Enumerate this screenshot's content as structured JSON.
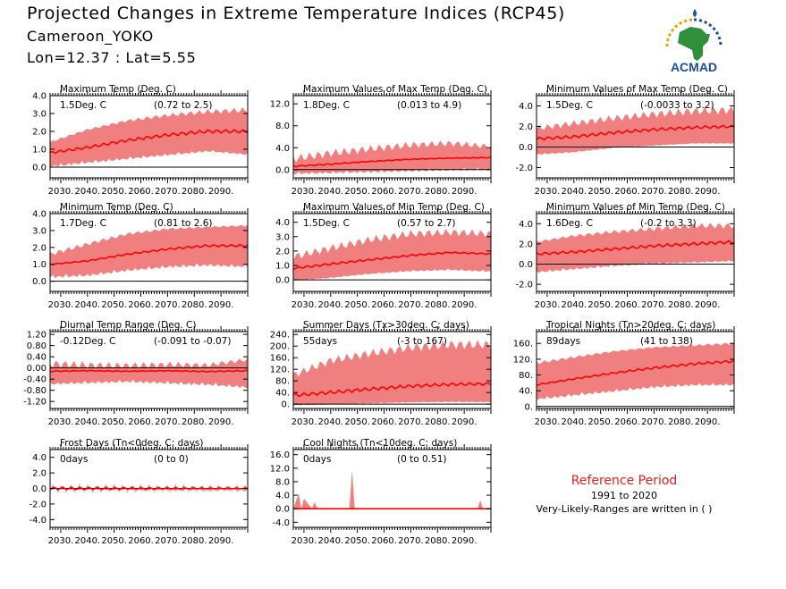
{
  "header": {
    "title": "Projected Changes in Extreme Temperature Indices (RCP45)",
    "location": "Cameroon_YOKO",
    "coords": "Lon=12.37 : Lat=5.55"
  },
  "logo": {
    "text": "ACMAD",
    "colors": {
      "africa": "#2f8f3a",
      "sun": "#e8a000",
      "text": "#1a4fa0"
    }
  },
  "reference": {
    "title": "Reference Period",
    "years": "1991 to 2020",
    "note": "Very-Likely-Ranges are written in ( )"
  },
  "style": {
    "band_color": "#f08080",
    "line_color": "#ff0000",
    "zero_line": "#000000"
  },
  "chart_data": [
    {
      "type": "area",
      "title": "Maximum Temp (Deg. C)",
      "summary": "1.5Deg. C",
      "range": "(0.72 to 2.5)",
      "x_ticks": [
        "2030.",
        "2040.",
        "2050.",
        "2060.",
        "2070.",
        "2080.",
        "2090."
      ],
      "yticks": [
        0.0,
        1.0,
        2.0,
        3.0,
        4.0
      ],
      "ytick_labels": [
        "0.0",
        "1.0",
        "2.0",
        "3.0",
        "4.0"
      ],
      "ylim": [
        -0.6,
        4.0
      ],
      "xlim": [
        2026,
        2100
      ],
      "series": [
        {
          "role": "median",
          "x": [
            2026,
            2040,
            2055,
            2070,
            2085,
            2100
          ],
          "y": [
            0.8,
            1.1,
            1.5,
            1.8,
            2.0,
            2.0
          ]
        },
        {
          "role": "upper",
          "x": [
            2026,
            2040,
            2055,
            2070,
            2085,
            2100
          ],
          "y": [
            1.4,
            2.1,
            2.6,
            2.9,
            3.1,
            3.2
          ]
        },
        {
          "role": "lower",
          "x": [
            2026,
            2040,
            2055,
            2070,
            2085,
            2100
          ],
          "y": [
            0.2,
            0.4,
            0.6,
            0.8,
            1.0,
            0.8
          ]
        }
      ]
    },
    {
      "type": "area",
      "title": "Maximum Values of Max Temp (Deg. C)",
      "summary": "1.8Deg. C",
      "range": "(0.013 to 4.9)",
      "x_ticks": [
        "2030.",
        "2040.",
        "2050.",
        "2060.",
        "2070.",
        "2080.",
        "2090."
      ],
      "yticks": [
        0.0,
        4.0,
        8.0,
        12.0
      ],
      "ytick_labels": [
        "0.0",
        "4.0",
        "8.0",
        "12.0"
      ],
      "ylim": [
        -1.5,
        13.5
      ],
      "xlim": [
        2026,
        2100
      ],
      "series": [
        {
          "role": "median",
          "x": [
            2026,
            2040,
            2055,
            2070,
            2085,
            2100
          ],
          "y": [
            0.6,
            1.0,
            1.5,
            1.9,
            2.1,
            2.2
          ]
        },
        {
          "role": "upper",
          "x": [
            2026,
            2040,
            2055,
            2070,
            2085,
            2100
          ],
          "y": [
            2.0,
            3.0,
            3.8,
            4.5,
            4.8,
            4.2
          ]
        },
        {
          "role": "lower",
          "x": [
            2026,
            2040,
            2055,
            2070,
            2085,
            2100
          ],
          "y": [
            -0.4,
            -0.2,
            0.0,
            0.2,
            0.4,
            0.5
          ]
        }
      ]
    },
    {
      "type": "area",
      "title": "Minimum Values of Max Temp (Deg. C)",
      "summary": "1.5Deg. C",
      "range": "(-0.0033 to 3.2)",
      "x_ticks": [
        "2030.",
        "2040.",
        "2050.",
        "2060.",
        "2070.",
        "2080.",
        "2090."
      ],
      "yticks": [
        -2.0,
        0.0,
        2.0,
        4.0
      ],
      "ytick_labels": [
        "-2.0",
        "0.0",
        "2.0",
        "4.0"
      ],
      "ylim": [
        -3.0,
        5.0
      ],
      "xlim": [
        2026,
        2100
      ],
      "series": [
        {
          "role": "median",
          "x": [
            2026,
            2040,
            2055,
            2070,
            2085,
            2100
          ],
          "y": [
            0.8,
            1.0,
            1.4,
            1.7,
            1.9,
            2.0
          ]
        },
        {
          "role": "upper",
          "x": [
            2026,
            2040,
            2055,
            2070,
            2085,
            2100
          ],
          "y": [
            1.8,
            2.3,
            2.8,
            3.2,
            3.5,
            3.6
          ]
        },
        {
          "role": "lower",
          "x": [
            2026,
            2040,
            2055,
            2070,
            2085,
            2100
          ],
          "y": [
            -0.6,
            -0.4,
            0.0,
            0.2,
            0.4,
            0.4
          ]
        }
      ]
    },
    {
      "type": "area",
      "title": "Minimum Temp (Deg. C)",
      "summary": "1.7Deg. C",
      "range": "(0.81 to 2.6)",
      "x_ticks": [
        "2030.",
        "2040.",
        "2050.",
        "2060.",
        "2070.",
        "2080.",
        "2090."
      ],
      "yticks": [
        0.0,
        1.0,
        2.0,
        3.0,
        4.0
      ],
      "ytick_labels": [
        "0.0",
        "1.0",
        "2.0",
        "3.0",
        "4.0"
      ],
      "ylim": [
        -0.6,
        4.0
      ],
      "xlim": [
        2026,
        2100
      ],
      "series": [
        {
          "role": "median",
          "x": [
            2026,
            2040,
            2055,
            2070,
            2085,
            2100
          ],
          "y": [
            1.0,
            1.2,
            1.6,
            1.9,
            2.1,
            2.1
          ]
        },
        {
          "role": "upper",
          "x": [
            2026,
            2040,
            2055,
            2070,
            2085,
            2100
          ],
          "y": [
            1.6,
            2.2,
            2.8,
            3.1,
            3.2,
            3.3
          ]
        },
        {
          "role": "lower",
          "x": [
            2026,
            2040,
            2055,
            2070,
            2085,
            2100
          ],
          "y": [
            0.4,
            0.5,
            0.8,
            1.0,
            1.1,
            1.0
          ]
        }
      ]
    },
    {
      "type": "area",
      "title": "Maximum Values of Min Temp (Deg. C)",
      "summary": "1.5Deg. C",
      "range": "(0.57 to 2.7)",
      "x_ticks": [
        "2030.",
        "2040.",
        "2050.",
        "2060.",
        "2070.",
        "2080.",
        "2090."
      ],
      "yticks": [
        0.0,
        1.0,
        2.0,
        3.0,
        4.0
      ],
      "ytick_labels": [
        "0.0",
        "1.0",
        "2.0",
        "3.0",
        "4.0"
      ],
      "ylim": [
        -0.8,
        4.6
      ],
      "xlim": [
        2026,
        2100
      ],
      "series": [
        {
          "role": "median",
          "x": [
            2026,
            2040,
            2055,
            2070,
            2085,
            2100
          ],
          "y": [
            0.8,
            1.1,
            1.4,
            1.7,
            1.9,
            1.8
          ]
        },
        {
          "role": "upper",
          "x": [
            2026,
            2040,
            2055,
            2070,
            2085,
            2100
          ],
          "y": [
            1.6,
            2.2,
            2.8,
            3.2,
            3.3,
            3.2
          ]
        },
        {
          "role": "lower",
          "x": [
            2026,
            2040,
            2055,
            2070,
            2085,
            2100
          ],
          "y": [
            0.0,
            0.2,
            0.5,
            0.7,
            0.8,
            0.7
          ]
        }
      ]
    },
    {
      "type": "area",
      "title": "Minimum Values of Min Temp (Deg. C)",
      "summary": "1.6Deg. C",
      "range": "(-0.2 to 3.3)",
      "x_ticks": [
        "2030.",
        "2040.",
        "2050.",
        "2060.",
        "2070.",
        "2080.",
        "2090."
      ],
      "yticks": [
        -2.0,
        0.0,
        2.0,
        4.0
      ],
      "ytick_labels": [
        "-2.0",
        "0.0",
        "2.0",
        "4.0"
      ],
      "ylim": [
        -2.7,
        5.0
      ],
      "xlim": [
        2026,
        2100
      ],
      "series": [
        {
          "role": "median",
          "x": [
            2026,
            2040,
            2055,
            2070,
            2085,
            2100
          ],
          "y": [
            1.0,
            1.2,
            1.5,
            1.8,
            2.0,
            2.2
          ]
        },
        {
          "role": "upper",
          "x": [
            2026,
            2040,
            2055,
            2070,
            2085,
            2100
          ],
          "y": [
            2.2,
            2.8,
            3.2,
            3.5,
            3.8,
            3.8
          ]
        },
        {
          "role": "lower",
          "x": [
            2026,
            2040,
            2055,
            2070,
            2085,
            2100
          ],
          "y": [
            -0.6,
            -0.3,
            0.0,
            0.2,
            0.3,
            0.4
          ]
        }
      ]
    },
    {
      "type": "area",
      "title": "Diurnal Temp Range (Deg. C)",
      "summary": "-0.12Deg. C",
      "range": "(-0.091 to -0.07)",
      "x_ticks": [
        "2030.",
        "2040.",
        "2050.",
        "2060.",
        "2070.",
        "2080.",
        "2090."
      ],
      "yticks": [
        -1.2,
        -0.8,
        -0.4,
        0.0,
        0.4,
        0.8,
        1.2
      ],
      "ytick_labels": [
        "-1.20",
        "-0.80",
        "-0.40",
        "0.00",
        "0.40",
        "0.80",
        "1.20"
      ],
      "ylim": [
        -1.45,
        1.3
      ],
      "xlim": [
        2026,
        2100
      ],
      "series": [
        {
          "role": "median",
          "x": [
            2026,
            2040,
            2055,
            2070,
            2085,
            2100
          ],
          "y": [
            -0.12,
            -0.1,
            -0.12,
            -0.1,
            -0.13,
            -0.1
          ]
        },
        {
          "role": "upper",
          "x": [
            2026,
            2040,
            2055,
            2070,
            2085,
            2100
          ],
          "y": [
            0.15,
            0.1,
            0.08,
            0.12,
            0.1,
            0.3
          ]
        },
        {
          "role": "lower",
          "x": [
            2026,
            2040,
            2055,
            2070,
            2085,
            2100
          ],
          "y": [
            -0.5,
            -0.45,
            -0.4,
            -0.45,
            -0.5,
            -0.6
          ]
        }
      ]
    },
    {
      "type": "area",
      "title": "Summer Days (Tx>30deg. C; days)",
      "summary": "55days",
      "range": "(-3 to 167)",
      "x_ticks": [
        "2030.",
        "2040.",
        "2050.",
        "2060.",
        "2070.",
        "2080.",
        "2090."
      ],
      "yticks": [
        0,
        40,
        80,
        120,
        160,
        200,
        240
      ],
      "ytick_labels": [
        "0.",
        "40.",
        "80.",
        "120.",
        "160.",
        "200.",
        "240."
      ],
      "ylim": [
        -15,
        250
      ],
      "xlim": [
        2026,
        2100
      ],
      "series": [
        {
          "role": "median",
          "x": [
            2026,
            2040,
            2055,
            2070,
            2085,
            2100
          ],
          "y": [
            30,
            40,
            52,
            62,
            68,
            70
          ]
        },
        {
          "role": "upper",
          "x": [
            2026,
            2040,
            2055,
            2070,
            2085,
            2100
          ],
          "y": [
            100,
            150,
            175,
            195,
            205,
            205
          ]
        },
        {
          "role": "lower",
          "x": [
            2026,
            2040,
            2055,
            2070,
            2085,
            2100
          ],
          "y": [
            0,
            2,
            5,
            8,
            10,
            10
          ]
        }
      ]
    },
    {
      "type": "area",
      "title": "Tropical Nights (Tn>20deg. C; days)",
      "summary": "89days",
      "range": "(41 to 138)",
      "x_ticks": [
        "2030.",
        "2040.",
        "2050.",
        "2060.",
        "2070.",
        "2080.",
        "2090."
      ],
      "yticks": [
        0,
        40,
        80,
        120,
        160
      ],
      "ytick_labels": [
        "0.",
        "40.",
        "80.",
        "120.",
        "160."
      ],
      "ylim": [
        -5,
        190
      ],
      "xlim": [
        2026,
        2100
      ],
      "series": [
        {
          "role": "median",
          "x": [
            2026,
            2040,
            2055,
            2070,
            2085,
            2100
          ],
          "y": [
            55,
            70,
            85,
            98,
            108,
            115
          ]
        },
        {
          "role": "upper",
          "x": [
            2026,
            2040,
            2055,
            2070,
            2085,
            2100
          ],
          "y": [
            110,
            125,
            140,
            150,
            155,
            160
          ]
        },
        {
          "role": "lower",
          "x": [
            2026,
            2040,
            2055,
            2070,
            2085,
            2100
          ],
          "y": [
            25,
            35,
            45,
            55,
            60,
            60
          ]
        }
      ]
    },
    {
      "type": "area",
      "title": "Frost Days (Tn<0deg. C; days)",
      "summary": "0days",
      "range": "(0 to 0)",
      "x_ticks": [
        "2030.",
        "2040.",
        "2050.",
        "2060.",
        "2070.",
        "2080.",
        "2090."
      ],
      "yticks": [
        -4.0,
        -2.0,
        0.0,
        2.0,
        4.0
      ],
      "ytick_labels": [
        "-4.0",
        "-2.0",
        "0.0",
        "2.0",
        "4.0"
      ],
      "ylim": [
        -5.0,
        5.0
      ],
      "xlim": [
        2026,
        2100
      ],
      "series": [
        {
          "role": "median",
          "x": [
            2026,
            2100
          ],
          "y": [
            0,
            0
          ]
        },
        {
          "role": "upper",
          "x": [
            2026,
            2100
          ],
          "y": [
            0,
            0
          ]
        },
        {
          "role": "lower",
          "x": [
            2026,
            2100
          ],
          "y": [
            0,
            0
          ]
        }
      ]
    },
    {
      "type": "area",
      "title": "Cool Nights (Tn<10deg. C; days)",
      "summary": "0days",
      "range": "(0 to 0.51)",
      "x_ticks": [
        "2030.",
        "2040.",
        "2050.",
        "2060.",
        "2070.",
        "2080.",
        "2090."
      ],
      "yticks": [
        -4.0,
        0.0,
        4.0,
        8.0,
        12.0,
        16.0
      ],
      "ytick_labels": [
        "-4.0",
        "0.0",
        "4.0",
        "8.0",
        "12.0",
        "16.0"
      ],
      "ylim": [
        -5.5,
        17.5
      ],
      "xlim": [
        2026,
        2100
      ],
      "series": [
        {
          "role": "median",
          "x": [
            2026,
            2100
          ],
          "y": [
            0,
            0
          ]
        },
        {
          "role": "upper",
          "x": [
            2026,
            2028,
            2029,
            2030,
            2033,
            2034,
            2035,
            2047,
            2048,
            2049,
            2050,
            2095,
            2096,
            2097,
            2100
          ],
          "y": [
            0,
            4.5,
            0,
            3.0,
            0,
            2.0,
            0,
            0,
            11.5,
            0,
            0,
            0,
            2.5,
            0,
            0
          ]
        },
        {
          "role": "lower",
          "x": [
            2026,
            2100
          ],
          "y": [
            0,
            0
          ]
        }
      ]
    }
  ]
}
